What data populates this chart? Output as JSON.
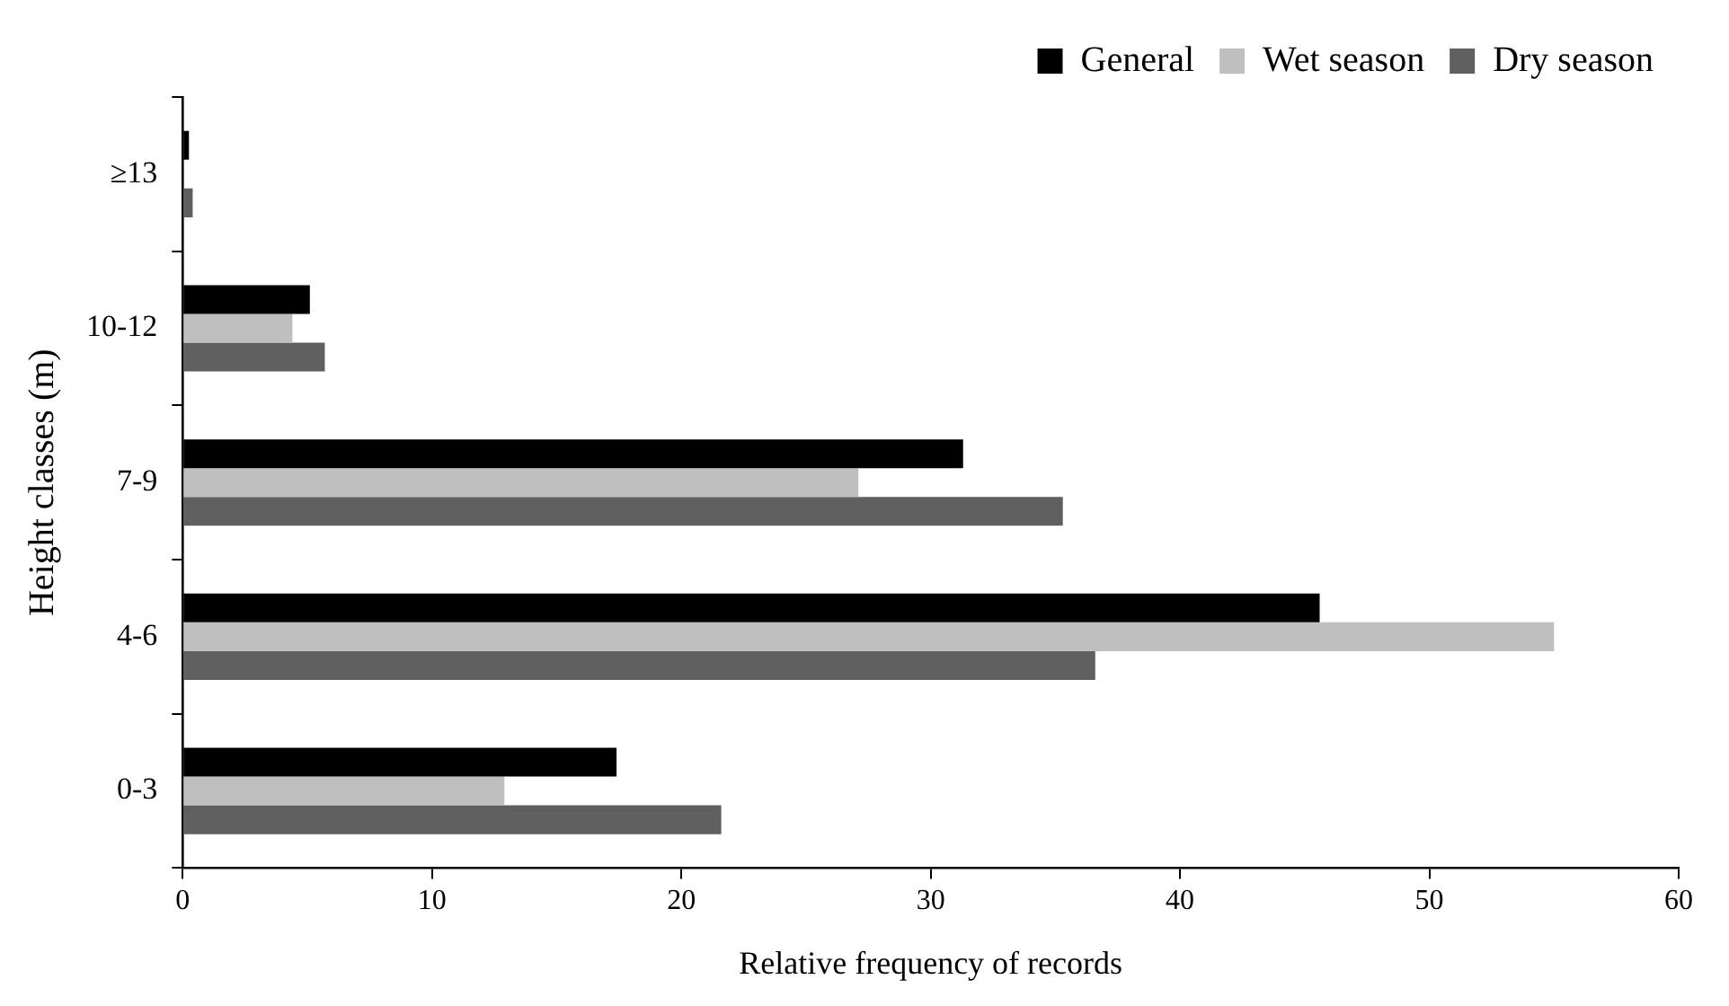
{
  "chart_data": {
    "type": "bar",
    "orientation": "horizontal",
    "xlabel": "Relative frequency of records",
    "ylabel": "Height classes (m)",
    "categories": [
      "≥13",
      "10-12",
      "7-9",
      "4-6",
      "0-3"
    ],
    "series": [
      {
        "name": "General",
        "color": "#000000",
        "values": [
          0.25,
          5.1,
          31.3,
          45.6,
          17.4
        ]
      },
      {
        "name": "Wet season",
        "color": "#bfbfbf",
        "values": [
          null,
          4.4,
          27.1,
          55.0,
          12.9
        ]
      },
      {
        "name": "Dry season",
        "color": "#5f5f5f",
        "values": [
          0.4,
          5.7,
          35.3,
          36.6,
          21.6
        ]
      }
    ],
    "xlim": [
      0,
      60
    ],
    "xticks": [
      0,
      10,
      20,
      30,
      40,
      50,
      60
    ],
    "grid": false,
    "legend": "top right"
  }
}
